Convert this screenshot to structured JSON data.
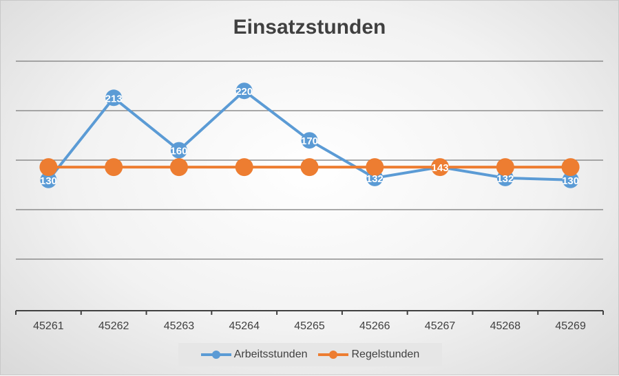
{
  "chart_data": {
    "type": "line",
    "title": "Einsatzstunden",
    "categories": [
      "45261",
      "45262",
      "45263",
      "45264",
      "45265",
      "45266",
      "45267",
      "45268",
      "45269"
    ],
    "series": [
      {
        "name": "Arbeitsstunden",
        "color": "#5b9bd5",
        "values": [
          130,
          213,
          160,
          220,
          170,
          132,
          143,
          132,
          130
        ],
        "data_labels": true
      },
      {
        "name": "Regelstunden",
        "color": "#ed7d31",
        "values": [
          143,
          143,
          143,
          143,
          143,
          143,
          143,
          143,
          143
        ],
        "data_labels": false
      }
    ],
    "ylim": [
      0,
      250
    ],
    "ytick_step": 50,
    "y_tick_labels_visible": false,
    "gridlines": true,
    "legend_position": "bottom"
  }
}
